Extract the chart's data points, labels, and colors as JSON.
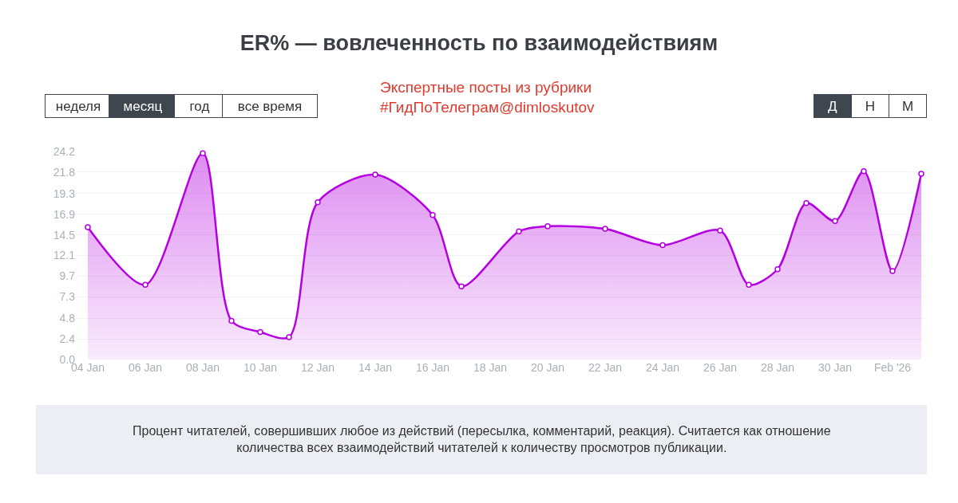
{
  "chart_data": {
    "type": "area",
    "title": "ER% — вовлеченность по взаимодействиям",
    "x": [
      "2026-01-04",
      "2026-01-06",
      "2026-01-08",
      "2026-01-09",
      "2026-01-10",
      "2026-01-11",
      "2026-01-12",
      "2026-01-14",
      "2026-01-16",
      "2026-01-17",
      "2026-01-19",
      "2026-01-20",
      "2026-01-22",
      "2026-01-24",
      "2026-01-26",
      "2026-01-27",
      "2026-01-28",
      "2026-01-29",
      "2026-01-30",
      "2026-01-31",
      "2026-02-01",
      "2026-02-02"
    ],
    "series": [
      {
        "color": "#b400e0",
        "values": [
          15.4,
          8.7,
          24.0,
          4.5,
          3.2,
          2.6,
          18.3,
          21.5,
          16.8,
          8.5,
          14.9,
          15.5,
          15.2,
          13.3,
          15.0,
          8.7,
          10.5,
          18.2,
          16.1,
          21.9,
          10.3,
          21.6
        ]
      }
    ],
    "xlim": [
      "2026-01-03T14:00",
      "2026-02-02T02:00"
    ],
    "xticks": [
      {
        "value": "2026-01-04",
        "label": "04 Jan"
      },
      {
        "value": "2026-01-06",
        "label": "06 Jan"
      },
      {
        "value": "2026-01-08",
        "label": "08 Jan"
      },
      {
        "value": "2026-01-10",
        "label": "10 Jan"
      },
      {
        "value": "2026-01-12",
        "label": "12 Jan"
      },
      {
        "value": "2026-01-14",
        "label": "14 Jan"
      },
      {
        "value": "2026-01-16",
        "label": "16 Jan"
      },
      {
        "value": "2026-01-18",
        "label": "18 Jan"
      },
      {
        "value": "2026-01-20",
        "label": "20 Jan"
      },
      {
        "value": "2026-01-22",
        "label": "22 Jan"
      },
      {
        "value": "2026-01-24",
        "label": "24 Jan"
      },
      {
        "value": "2026-01-26",
        "label": "26 Jan"
      },
      {
        "value": "2026-01-28",
        "label": "28 Jan"
      },
      {
        "value": "2026-01-30",
        "label": "30 Jan"
      },
      {
        "value": "2026-02-01",
        "label": "Feb '26"
      }
    ],
    "ylim": [
      0,
      24.2
    ],
    "yticks": [
      "0.0",
      2.4,
      4.8,
      7.3,
      9.7,
      12.1,
      14.5,
      16.9,
      19.3,
      21.8,
      24.2
    ],
    "grid": "y",
    "marker": "circle",
    "line_style": "solid",
    "annotations": [
      "Экспертные посты из рубрики\n#ГидПоТелеграм@dimloskutov",
      "неделя",
      "месяц",
      "год",
      "все время",
      "Д",
      "Н",
      "М",
      "Процент читателей, совершивших любое из действий (пересылка, комментарий, реакция). Считается как отношение\nколичества всех взаимодействий читателей к количеству просмотров публикации."
    ]
  }
}
